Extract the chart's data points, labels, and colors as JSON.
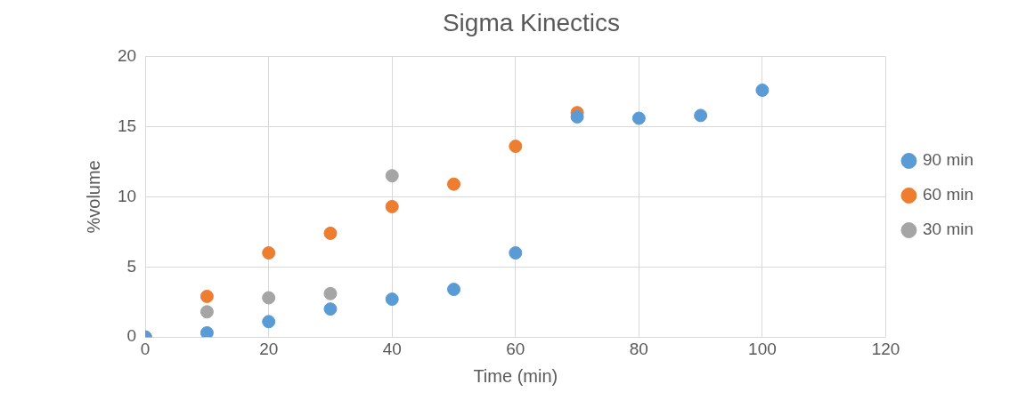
{
  "chart_data": {
    "type": "scatter",
    "title": "Sigma Kinectics",
    "xlabel": "Time (min)",
    "ylabel": "%volume",
    "xlim": [
      0,
      120
    ],
    "xticks": [
      0,
      20,
      40,
      60,
      80,
      100,
      120
    ],
    "ylim": [
      0,
      20
    ],
    "yticks": [
      0,
      5,
      10,
      15,
      20
    ],
    "grid": true,
    "legend": "right",
    "marker": "circle",
    "series": [
      {
        "name": "90 min",
        "color": "#5b9bd5",
        "x": [
          0,
          10,
          20,
          30,
          40,
          50,
          60,
          70,
          80,
          90,
          100
        ],
        "values": [
          0,
          0.3,
          1.1,
          2.0,
          2.7,
          3.4,
          6.0,
          15.7,
          15.6,
          15.8,
          17.6
        ]
      },
      {
        "name": "60 min",
        "color": "#ed7d31",
        "x": [
          0,
          10,
          20,
          30,
          40,
          50,
          60,
          70
        ],
        "values": [
          0,
          2.9,
          6.0,
          7.4,
          9.3,
          10.9,
          13.6,
          16.0
        ]
      },
      {
        "name": "30 min",
        "color": "#a5a5a5",
        "x": [
          0,
          10,
          20,
          30,
          40
        ],
        "values": [
          0,
          1.8,
          2.8,
          3.1,
          11.5
        ]
      }
    ]
  }
}
